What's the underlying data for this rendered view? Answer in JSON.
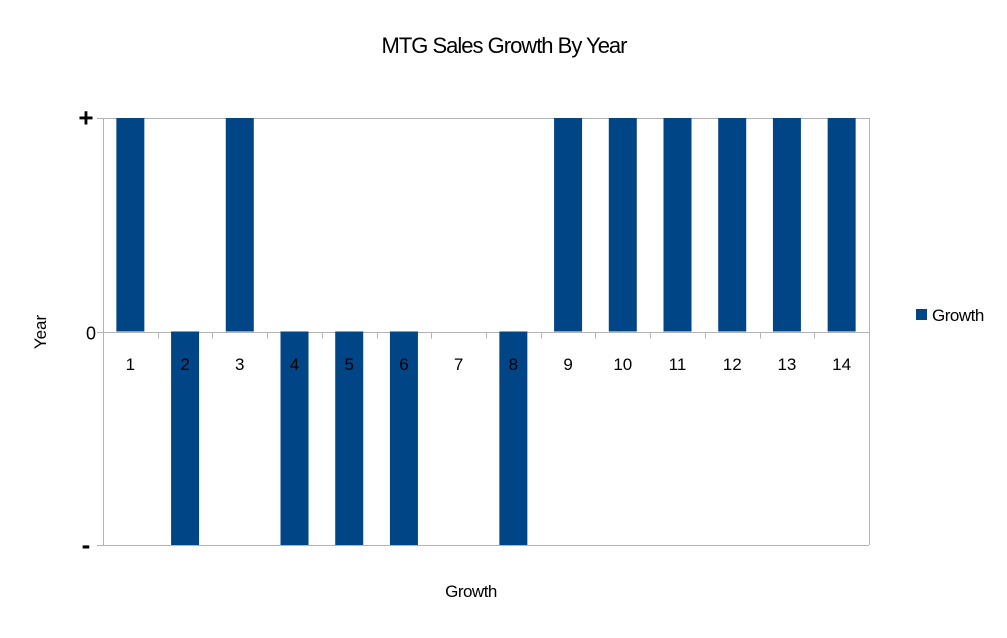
{
  "chart_data": {
    "type": "bar",
    "title": "MTG Sales Growth By Year",
    "xlabel": "Growth",
    "ylabel": "Year",
    "categories": [
      "1",
      "2",
      "3",
      "4",
      "5",
      "6",
      "7",
      "8",
      "9",
      "10",
      "11",
      "12",
      "13",
      "14"
    ],
    "series": [
      {
        "name": "Growth",
        "color": "#004586",
        "values": [
          1,
          -1,
          1,
          -1,
          -1,
          -1,
          0,
          -1,
          1,
          1,
          1,
          1,
          1,
          1
        ]
      }
    ],
    "ylim": [
      -1,
      1
    ],
    "yticks": [
      {
        "value": 1,
        "label": "+"
      },
      {
        "value": 0,
        "label": "0"
      },
      {
        "value": -1,
        "label": "-"
      }
    ],
    "grid": true,
    "legend": "right"
  }
}
